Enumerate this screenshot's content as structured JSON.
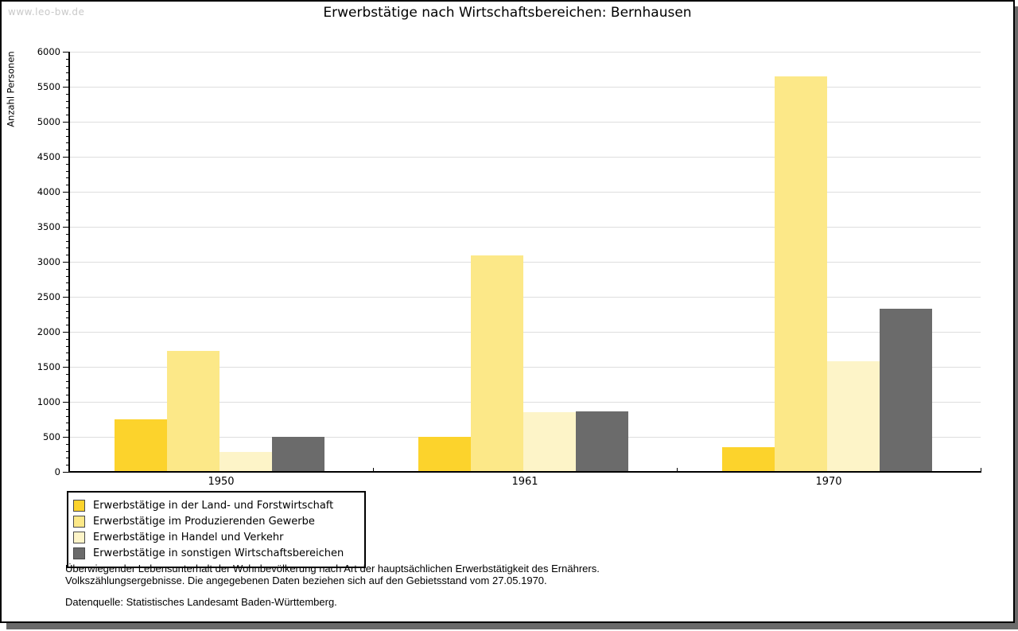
{
  "watermark": "www.leo-bw.de",
  "title": "Erwerbstätige nach Wirtschaftsbereichen: Bernhausen",
  "chart_data": {
    "type": "bar",
    "title": "Erwerbstätige nach Wirtschaftsbereichen: Bernhausen",
    "xlabel": "",
    "ylabel": "Anzahl Personen",
    "ylim": [
      0,
      6000
    ],
    "ytick_step": 500,
    "ytick_minor_step": 100,
    "grid": true,
    "legend_position": "bottom-left",
    "categories": [
      "1950",
      "1961",
      "1970"
    ],
    "series": [
      {
        "name": "Erwerbstätige in der Land- und Forstwirtschaft",
        "color": "#fcd32c",
        "values": [
          750,
          500,
          350
        ]
      },
      {
        "name": "Erwerbstätige im Produzierenden Gewerbe",
        "color": "#fce888",
        "values": [
          1725,
          3090,
          5650
        ]
      },
      {
        "name": "Erwerbstätige in Handel und Verkehr",
        "color": "#fdf4c8",
        "values": [
          280,
          855,
          1580
        ]
      },
      {
        "name": "Erwerbstätige in sonstigen Wirtschaftsbereichen",
        "color": "#6b6b6b",
        "values": [
          500,
          865,
          2330
        ]
      }
    ]
  },
  "footer": {
    "note_line1": "Überwiegender Lebensunterhalt der Wohnbevölkerung nach Art der hauptsächlichen Erwerbstätigkeit des Ernährers.",
    "note_line2": "Volkszählungsergebnisse. Die angegebenen Daten beziehen sich auf den Gebietsstand vom 27.05.1970.",
    "source": "Datenquelle: Statistisches Landesamt Baden-Württemberg."
  },
  "colors": {
    "grid": "#dedede",
    "axis": "#000000",
    "page_shadow": "#6a6a6a",
    "watermark": "#c9c9c9"
  }
}
